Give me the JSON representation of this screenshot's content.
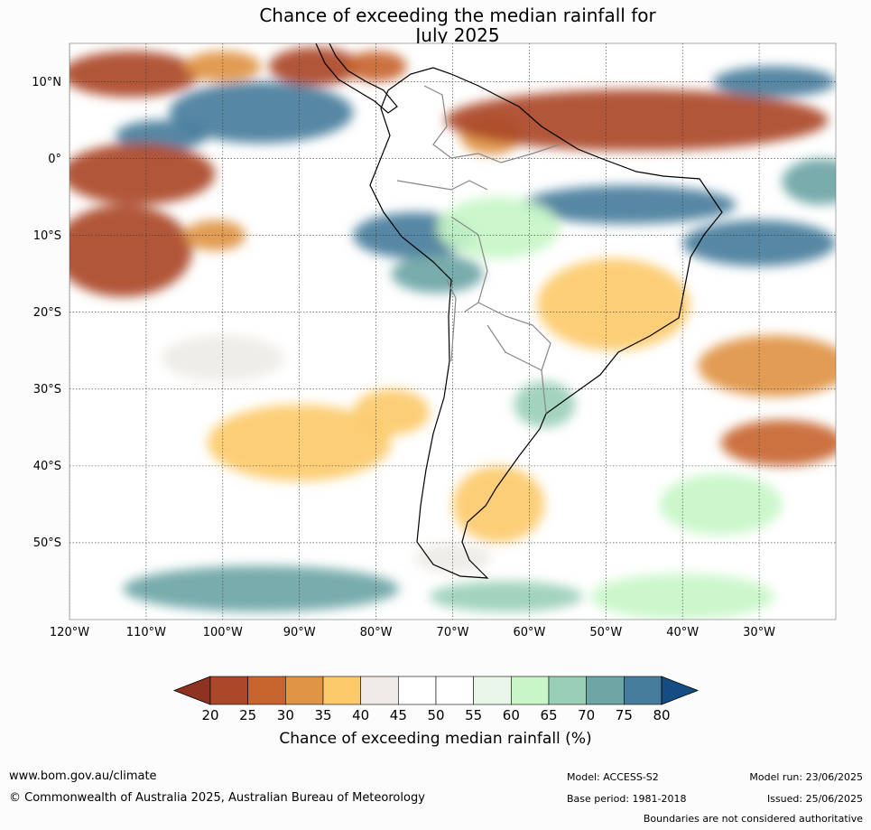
{
  "title_line1": "Chance of exceeding the median rainfall for",
  "title_line2": "July 2025",
  "map": {
    "lat_labels": [
      "10°N",
      "0°",
      "10°S",
      "20°S",
      "30°S",
      "40°S",
      "50°S"
    ],
    "lat_values": [
      10,
      0,
      -10,
      -20,
      -30,
      -40,
      -50
    ],
    "lon_labels": [
      "120°W",
      "110°W",
      "100°W",
      "90°W",
      "80°W",
      "70°W",
      "60°W",
      "50°W",
      "40°W",
      "30°W"
    ],
    "lon_values": [
      -120,
      -110,
      -100,
      -90,
      -80,
      -70,
      -60,
      -50,
      -40,
      -30
    ],
    "extent": {
      "lon_min": -120,
      "lon_max": -20,
      "lat_min": -60,
      "lat_max": 15
    },
    "regions": [
      {
        "lon": -112,
        "lat": 11,
        "rx": 9,
        "ry": 3,
        "pct": 22
      },
      {
        "lon": -88,
        "lat": 12,
        "rx": 6,
        "ry": 2.5,
        "pct": 20
      },
      {
        "lon": -80,
        "lat": 12,
        "rx": 4,
        "ry": 2,
        "pct": 25
      },
      {
        "lon": -100,
        "lat": 12,
        "rx": 5,
        "ry": 2,
        "pct": 30
      },
      {
        "lon": -95,
        "lat": 6,
        "rx": 12,
        "ry": 4,
        "pct": 78
      },
      {
        "lon": -108,
        "lat": 3,
        "rx": 6,
        "ry": 2,
        "pct": 75
      },
      {
        "lon": -111,
        "lat": -2,
        "rx": 10,
        "ry": 4,
        "pct": 22
      },
      {
        "lon": -113,
        "lat": -12,
        "rx": 9,
        "ry": 6,
        "pct": 22
      },
      {
        "lon": -101,
        "lat": -10,
        "rx": 4,
        "ry": 2,
        "pct": 30
      },
      {
        "lon": -75,
        "lat": -10,
        "rx": 8,
        "ry": 3,
        "pct": 78
      },
      {
        "lon": -72,
        "lat": -15,
        "rx": 6,
        "ry": 2.5,
        "pct": 72
      },
      {
        "lon": -65,
        "lat": 3,
        "rx": 4,
        "ry": 2.5,
        "pct": 30
      },
      {
        "lon": -46,
        "lat": 5,
        "rx": 25,
        "ry": 4,
        "pct": 20
      },
      {
        "lon": -28,
        "lat": 10,
        "rx": 8,
        "ry": 2,
        "pct": 78
      },
      {
        "lon": -47,
        "lat": -6,
        "rx": 14,
        "ry": 2.5,
        "pct": 75
      },
      {
        "lon": -30,
        "lat": -11,
        "rx": 10,
        "ry": 3,
        "pct": 78
      },
      {
        "lon": -22,
        "lat": -3,
        "rx": 5,
        "ry": 3,
        "pct": 72
      },
      {
        "lon": -49,
        "lat": -19,
        "rx": 10,
        "ry": 6,
        "pct": 35
      },
      {
        "lon": -28,
        "lat": -27,
        "rx": 10,
        "ry": 4,
        "pct": 30
      },
      {
        "lon": -27,
        "lat": -37,
        "rx": 8,
        "ry": 3,
        "pct": 25
      },
      {
        "lon": -90,
        "lat": -37,
        "rx": 12,
        "ry": 5,
        "pct": 35
      },
      {
        "lon": -78,
        "lat": -33,
        "rx": 5,
        "ry": 3,
        "pct": 35
      },
      {
        "lon": -64,
        "lat": -45,
        "rx": 6,
        "ry": 5,
        "pct": 35
      },
      {
        "lon": -58,
        "lat": -32,
        "rx": 4,
        "ry": 3,
        "pct": 65
      },
      {
        "lon": -64,
        "lat": -9,
        "rx": 8,
        "ry": 4,
        "pct": 60
      },
      {
        "lon": -95,
        "lat": -56,
        "rx": 18,
        "ry": 3,
        "pct": 70
      },
      {
        "lon": -63,
        "lat": -57,
        "rx": 10,
        "ry": 2,
        "pct": 65
      },
      {
        "lon": -40,
        "lat": -57,
        "rx": 12,
        "ry": 3,
        "pct": 62
      },
      {
        "lon": -35,
        "lat": -45,
        "rx": 8,
        "ry": 4,
        "pct": 62
      },
      {
        "lon": -100,
        "lat": -26,
        "rx": 8,
        "ry": 3,
        "pct": 42
      },
      {
        "lon": -70,
        "lat": -52,
        "rx": 5,
        "ry": 2,
        "pct": 42
      }
    ]
  },
  "colorbar": {
    "ticks": [
      "20",
      "25",
      "30",
      "35",
      "40",
      "45",
      "50",
      "55",
      "60",
      "65",
      "70",
      "75",
      "80"
    ],
    "colors": [
      "#ab4829",
      "#c8652f",
      "#e09445",
      "#fcca6b",
      "#eeebe6",
      "#ffffff",
      "#ffffff",
      "#eaf6ea",
      "#c8f6c8",
      "#9acfb7",
      "#6ea5a5",
      "#477d9c"
    ],
    "low_extend_color": "#8e3321",
    "high_extend_color": "#134d84",
    "label": "Chance of exceeding median rainfall (%)"
  },
  "footer": {
    "site_url": "www.bom.gov.au/climate",
    "copyright": "© Commonwealth of Australia 2025, Australian Bureau of Meteorology",
    "model": "Model: ACCESS-S2",
    "base_period": "Base period: 1981-2018",
    "model_run": "Model run: 23/06/2025",
    "issued": "Issued: 25/06/2025",
    "boundaries": "Boundaries are not considered authoritative"
  }
}
